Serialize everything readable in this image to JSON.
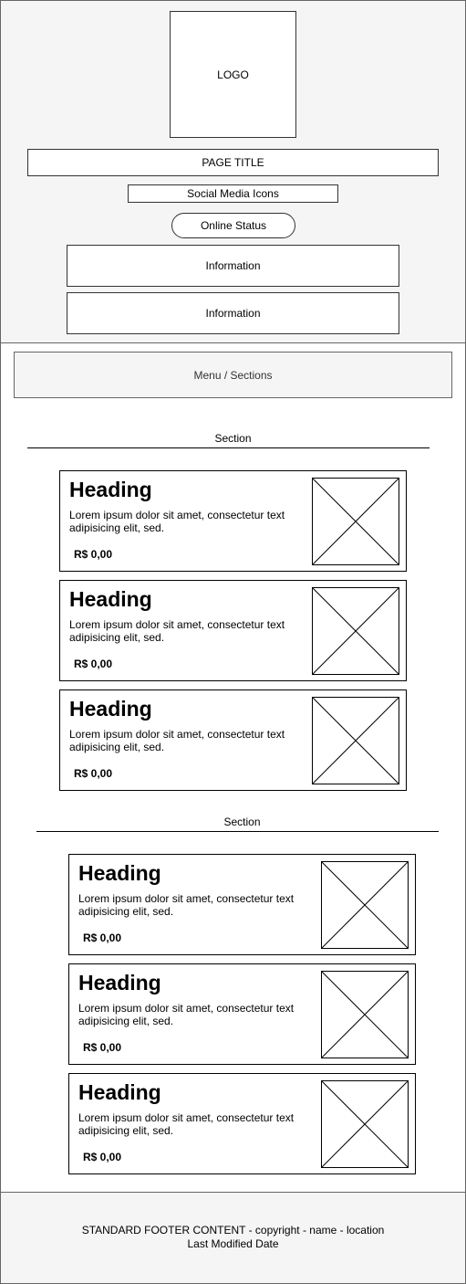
{
  "header": {
    "logo_label": "LOGO",
    "page_title": "PAGE TITLE",
    "social_media_label": "Social Media Icons",
    "online_status_label": "Online Status",
    "info_boxes": [
      "Information",
      "Information"
    ]
  },
  "menu": {
    "label": "Menu / Sections"
  },
  "sections": [
    {
      "title": "Section",
      "items": [
        {
          "heading": "Heading",
          "text": "Lorem ipsum dolor sit amet, consectetur text adipisicing elit, sed.",
          "price": "R$ 0,00",
          "image_icon": "image-placeholder-icon"
        },
        {
          "heading": "Heading",
          "text": "Lorem ipsum dolor sit amet, consectetur text adipisicing elit, sed.",
          "price": "R$ 0,00",
          "image_icon": "image-placeholder-icon"
        },
        {
          "heading": "Heading",
          "text": "Lorem ipsum dolor sit amet, consectetur text adipisicing elit, sed.",
          "price": "R$ 0,00",
          "image_icon": "image-placeholder-icon"
        }
      ]
    },
    {
      "title": "Section",
      "items": [
        {
          "heading": "Heading",
          "text": "Lorem ipsum dolor sit amet, consectetur text adipisicing elit, sed.",
          "price": "R$ 0,00",
          "image_icon": "image-placeholder-icon"
        },
        {
          "heading": "Heading",
          "text": "Lorem ipsum dolor sit amet, consectetur text adipisicing elit, sed.",
          "price": "R$ 0,00",
          "image_icon": "image-placeholder-icon"
        },
        {
          "heading": "Heading",
          "text": "Lorem ipsum dolor sit amet, consectetur text adipisicing elit, sed.",
          "price": "R$ 0,00",
          "image_icon": "image-placeholder-icon"
        }
      ]
    }
  ],
  "footer": {
    "line1": "STANDARD FOOTER CONTENT - copyright - name - location",
    "line2": "Last Modified Date"
  },
  "colors": {
    "panel_background": "#f5f5f5",
    "border": "#333333",
    "text": "#000000"
  }
}
